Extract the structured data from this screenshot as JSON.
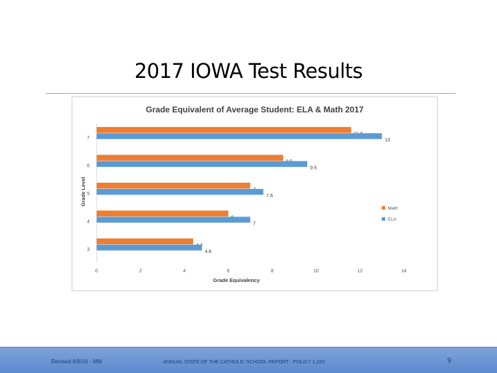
{
  "slide": {
    "title": "2017 IOWA Test Results"
  },
  "footer": {
    "left": "Revised 8/9/16 - MM",
    "center": "ANNUAL STATE OF THE CATHOLIC SCHOOL REPORT - POLICY 1.220",
    "page_number": "9"
  },
  "colors": {
    "math": "#ed7d31",
    "ela": "#5b9bd5"
  },
  "chart_data": {
    "type": "bar",
    "orientation": "horizontal",
    "title": "Grade Equivalent of Average Student: ELA & Math 2017",
    "xlabel": "Grade Equivalency",
    "ylabel": "Grade Level",
    "categories": [
      "7",
      "6",
      "5",
      "4",
      "3"
    ],
    "series": [
      {
        "name": "Math",
        "values": [
          11.6,
          8.5,
          7,
          6,
          4.4
        ],
        "labels": [
          "11.6",
          "8.5",
          "7",
          "6",
          "4.4"
        ]
      },
      {
        "name": "ELA",
        "values": [
          13,
          9.6,
          7.6,
          7,
          4.8
        ],
        "labels": [
          "13",
          "9.6",
          "7.6",
          "7",
          "4.8"
        ]
      }
    ],
    "xlim": [
      0,
      14
    ],
    "xticks": [
      "0",
      "2",
      "4",
      "6",
      "8",
      "10",
      "12",
      "14"
    ],
    "grid": false,
    "legend": "right"
  }
}
